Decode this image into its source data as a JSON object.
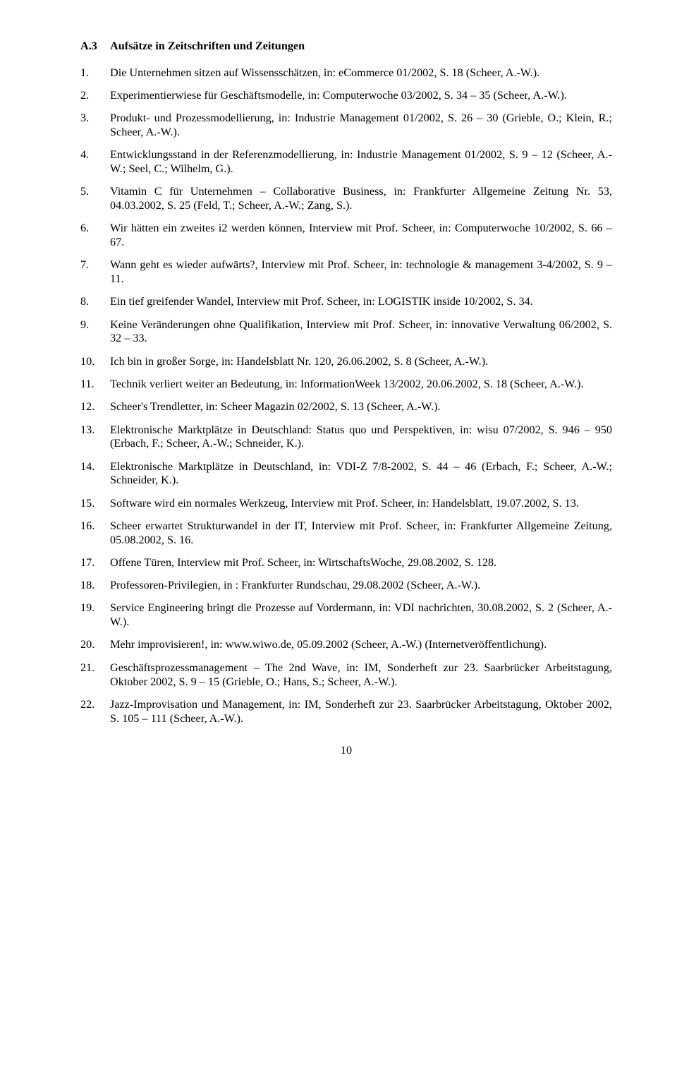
{
  "section": {
    "number": "A.3",
    "title": "Aufsätze in Zeitschriften und Zeitungen"
  },
  "entries": [
    {
      "n": "1.",
      "t": "Die Unternehmen sitzen auf Wissensschätzen, in: eCommerce 01/2002, S. 18 (Scheer, A.-W.)."
    },
    {
      "n": "2.",
      "t": "Experimentierwiese für Geschäftsmodelle, in: Computerwoche 03/2002, S. 34 – 35 (Scheer, A.-W.)."
    },
    {
      "n": "3.",
      "t": "Produkt- und Prozessmodellierung, in: Industrie Management 01/2002, S. 26 – 30 (Grieble, O.; Klein, R.; Scheer, A.-W.)."
    },
    {
      "n": "4.",
      "t": "Entwicklungsstand in der Referenzmodellierung, in: Industrie Management 01/2002, S. 9 – 12 (Scheer, A.-W.; Seel, C.; Wilhelm, G.)."
    },
    {
      "n": "5.",
      "t": "Vitamin C für Unternehmen – Collaborative Business, in: Frankfurter Allgemeine Zeitung Nr. 53, 04.03.2002, S. 25 (Feld, T.; Scheer, A.-W.; Zang, S.)."
    },
    {
      "n": "6.",
      "t": "Wir hätten ein zweites i2 werden können, Interview mit Prof. Scheer, in: Computerwoche 10/2002, S. 66 – 67."
    },
    {
      "n": "7.",
      "t": "Wann geht es wieder aufwärts?, Interview mit Prof. Scheer, in: technologie & management 3-4/2002, S. 9 – 11."
    },
    {
      "n": "8.",
      "t": "Ein tief greifender Wandel, Interview mit Prof. Scheer, in: LOGISTIK inside 10/2002, S. 34."
    },
    {
      "n": "9.",
      "t": "Keine Veränderungen ohne Qualifikation, Interview mit Prof. Scheer, in: innovative Verwaltung 06/2002, S. 32 – 33."
    },
    {
      "n": "10.",
      "t": "Ich bin in großer Sorge, in: Handelsblatt Nr. 120, 26.06.2002, S. 8 (Scheer, A.-W.)."
    },
    {
      "n": "11.",
      "t": "Technik verliert weiter an Bedeutung, in: InformationWeek 13/2002, 20.06.2002, S. 18 (Scheer, A.-W.)."
    },
    {
      "n": "12.",
      "t": "Scheer's Trendletter, in: Scheer Magazin 02/2002, S. 13 (Scheer, A.-W.)."
    },
    {
      "n": "13.",
      "t": "Elektronische Marktplätze in Deutschland: Status quo und Perspektiven, in: wisu 07/2002, S. 946 – 950 (Erbach, F.; Scheer, A.-W.; Schneider, K.)."
    },
    {
      "n": "14.",
      "t": "Elektronische Marktplätze in Deutschland, in: VDI-Z 7/8-2002, S. 44 – 46 (Erbach, F.; Scheer, A.-W.; Schneider, K.)."
    },
    {
      "n": "15.",
      "t": "Software wird ein normales Werkzeug, Interview mit Prof. Scheer, in: Handelsblatt, 19.07.2002, S. 13."
    },
    {
      "n": "16.",
      "t": "Scheer erwartet Strukturwandel in der IT, Interview mit Prof. Scheer, in: Frankfurter Allgemeine Zeitung, 05.08.2002, S. 16."
    },
    {
      "n": "17.",
      "t": "Offene Türen, Interview mit Prof. Scheer, in: WirtschaftsWoche, 29.08.2002, S. 128."
    },
    {
      "n": "18.",
      "t": "Professoren-Privilegien, in : Frankfurter Rundschau, 29.08.2002 (Scheer, A.-W.)."
    },
    {
      "n": "19.",
      "t": "Service Engineering bringt die Prozesse auf Vordermann, in: VDI nachrichten, 30.08.2002, S. 2 (Scheer, A.-W.)."
    },
    {
      "n": "20.",
      "t": "Mehr improvisieren!, in: www.wiwo.de, 05.09.2002 (Scheer, A.-W.) (Internetveröffentlichung)."
    },
    {
      "n": "21.",
      "t": "Geschäftsprozessmanagement – The 2nd Wave, in: IM, Sonderheft zur 23. Saarbrücker Arbeitstagung, Oktober 2002, S. 9 – 15 (Grieble, O.; Hans, S.; Scheer, A.-W.)."
    },
    {
      "n": "22.",
      "t": "Jazz-Improvisation und Management, in: IM, Sonderheft zur 23. Saarbrücker Arbeitstagung, Oktober 2002, S. 105 – 111 (Scheer, A.-W.)."
    }
  ],
  "pageNumber": "10"
}
